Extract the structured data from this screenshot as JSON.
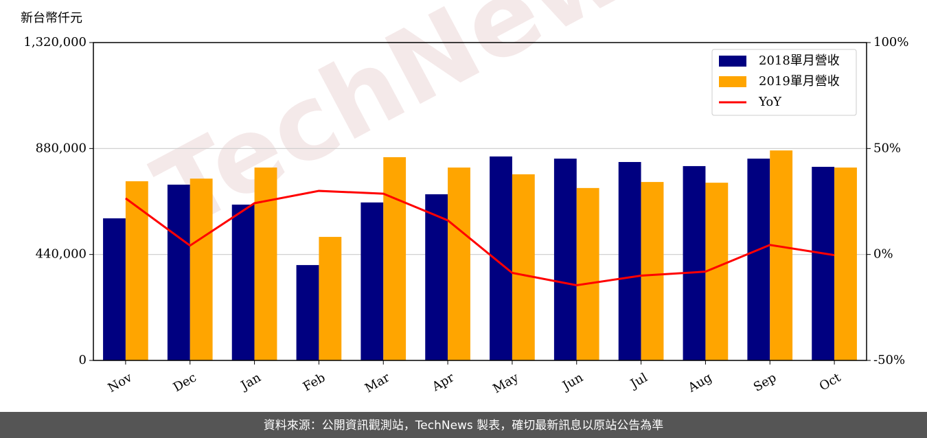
{
  "chart_data": {
    "type": "bar",
    "y_label": "新台幣仟元",
    "watermark": "TechNews",
    "source": "資料來源：公開資訊觀測站，TechNews 製表，確切最新訊息以原站公告為準",
    "categories": [
      "Nov",
      "Dec",
      "Jan",
      "Feb",
      "Mar",
      "Apr",
      "May",
      "Jun",
      "Jul",
      "Aug",
      "Sep",
      "Oct"
    ],
    "series": [
      {
        "name": "2018單月營收",
        "type": "bar",
        "color": "#000080",
        "values": [
          590000,
          730000,
          647000,
          396000,
          656000,
          690000,
          847000,
          838000,
          824000,
          807000,
          838000,
          804000
        ]
      },
      {
        "name": "2019單月營收",
        "type": "bar",
        "color": "#ffa500",
        "values": [
          744000,
          755000,
          801000,
          513000,
          844000,
          801000,
          773000,
          716000,
          741000,
          738000,
          872000,
          801000
        ]
      },
      {
        "name": "YoY",
        "type": "line",
        "axis": "y2",
        "color": "#ff0000",
        "values": [
          26.5,
          4.2,
          24.2,
          30,
          28.7,
          16.1,
          -8.7,
          -14.5,
          -10,
          -8.1,
          4.5,
          -0.3
        ]
      }
    ],
    "ylim": [
      0,
      1320000
    ],
    "yticks": [
      0,
      {
        "value": 440000,
        "label": "440,000"
      },
      {
        "value": 880000,
        "label": "880,000"
      },
      {
        "value": 1320000,
        "label": "1,320,000"
      }
    ],
    "y2lim": [
      -50,
      100
    ],
    "y2ticks": [
      {
        "value": -50,
        "label": "-50%"
      },
      {
        "value": 0,
        "label": "0%"
      },
      {
        "value": 50,
        "label": "50%"
      },
      {
        "value": 100,
        "label": "100%"
      }
    ],
    "grid": true,
    "legend": "upper right"
  }
}
